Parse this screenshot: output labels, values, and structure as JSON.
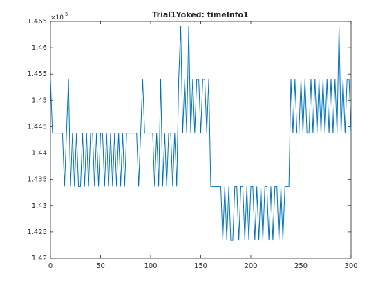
{
  "chart_data": {
    "type": "line",
    "title": "Trial1Yoked: timeInfo1",
    "y_multiplier": "×10",
    "y_exponent": "5",
    "x": [
      0,
      2,
      4,
      6,
      8,
      10,
      12,
      14,
      16,
      18,
      20,
      22,
      24,
      26,
      28,
      30,
      32,
      34,
      36,
      38,
      40,
      42,
      44,
      46,
      48,
      50,
      52,
      54,
      56,
      58,
      60,
      62,
      64,
      66,
      68,
      70,
      72,
      74,
      76,
      78,
      80,
      82,
      84,
      86,
      88,
      90,
      92,
      94,
      96,
      98,
      100,
      102,
      104,
      106,
      108,
      110,
      112,
      114,
      116,
      118,
      120,
      122,
      124,
      126,
      128,
      130,
      132,
      134,
      136,
      138,
      140,
      142,
      144,
      146,
      148,
      150,
      152,
      154,
      156,
      158,
      160,
      162,
      164,
      166,
      168,
      170,
      172,
      174,
      176,
      178,
      180,
      182,
      184,
      186,
      188,
      190,
      192,
      194,
      196,
      198,
      200,
      202,
      204,
      206,
      208,
      210,
      212,
      214,
      216,
      218,
      220,
      222,
      224,
      226,
      228,
      230,
      232,
      234,
      236,
      238,
      240,
      242,
      244,
      246,
      248,
      250,
      252,
      254,
      256,
      258,
      260,
      262,
      264,
      266,
      268,
      270,
      272,
      274,
      276,
      278,
      280,
      282,
      284,
      286,
      288,
      290,
      292,
      294,
      296,
      298,
      300
    ],
    "series": [
      {
        "name": "timeInfo1",
        "color": "#0072bd",
        "values": [
          1.454,
          1.4438,
          1.4438,
          1.4438,
          1.4438,
          1.4438,
          1.4438,
          1.4336,
          1.4438,
          1.454,
          1.4336,
          1.4438,
          1.4336,
          1.4438,
          1.4336,
          1.4336,
          1.4438,
          1.4336,
          1.4438,
          1.4336,
          1.4438,
          1.4438,
          1.4336,
          1.4438,
          1.4336,
          1.4438,
          1.4438,
          1.4336,
          1.4438,
          1.4336,
          1.4438,
          1.4336,
          1.4438,
          1.4336,
          1.4438,
          1.4336,
          1.4438,
          1.4336,
          1.4438,
          1.4438,
          1.4438,
          1.4438,
          1.4438,
          1.4438,
          1.4336,
          1.4438,
          1.454,
          1.4438,
          1.4438,
          1.4438,
          1.4438,
          1.4438,
          1.4336,
          1.4438,
          1.4336,
          1.454,
          1.4336,
          1.4438,
          1.4336,
          1.4438,
          1.4438,
          1.4336,
          1.4438,
          1.4336,
          1.454,
          1.4642,
          1.4438,
          1.454,
          1.4438,
          1.4642,
          1.4438,
          1.454,
          1.4438,
          1.454,
          1.454,
          1.4438,
          1.454,
          1.454,
          1.4438,
          1.454,
          1.4336,
          1.4336,
          1.4336,
          1.4336,
          1.4336,
          1.4336,
          1.4234,
          1.4336,
          1.4234,
          1.4336,
          1.4234,
          1.4234,
          1.4336,
          1.4336,
          1.4234,
          1.4336,
          1.4336,
          1.4234,
          1.4336,
          1.4234,
          1.4336,
          1.4336,
          1.4234,
          1.4336,
          1.4234,
          1.4336,
          1.4234,
          1.4336,
          1.4336,
          1.4234,
          1.4336,
          1.4234,
          1.4336,
          1.4336,
          1.4234,
          1.4336,
          1.4234,
          1.4336,
          1.4336,
          1.4336,
          1.454,
          1.4438,
          1.454,
          1.4438,
          1.4438,
          1.454,
          1.4438,
          1.454,
          1.4438,
          1.4438,
          1.454,
          1.4438,
          1.454,
          1.4438,
          1.454,
          1.4438,
          1.454,
          1.4438,
          1.454,
          1.4438,
          1.454,
          1.4438,
          1.454,
          1.4438,
          1.4642,
          1.4438,
          1.454,
          1.4438,
          1.454,
          1.454,
          1.4438
        ]
      }
    ],
    "xlim": [
      0,
      300
    ],
    "xticks": [
      0,
      50,
      100,
      150,
      200,
      250,
      300
    ],
    "ylim": [
      1.42,
      1.465
    ],
    "yticks": [
      1.42,
      1.425,
      1.43,
      1.435,
      1.44,
      1.445,
      1.45,
      1.455,
      1.46,
      1.465
    ]
  }
}
